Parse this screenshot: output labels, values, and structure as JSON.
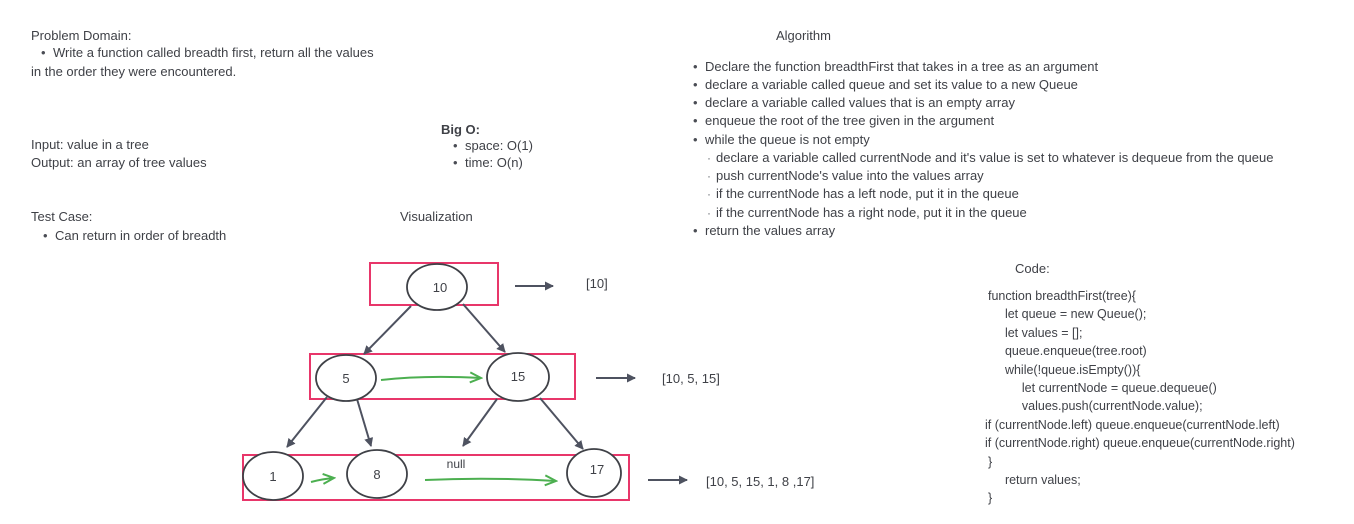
{
  "problem": {
    "heading": "Problem Domain:",
    "bullet": "Write a function called breadth first, return all the values",
    "continuation": "in the order they were encountered."
  },
  "io": {
    "input": "Input: value in a tree",
    "output": "Output: an array of tree values"
  },
  "big_o": {
    "heading": "Big O:",
    "items": [
      "space: O(1)",
      "time: O(n)"
    ]
  },
  "test_case": {
    "heading": "Test Case:",
    "item": "Can return in order of breadth"
  },
  "visualization": {
    "heading": "Visualization",
    "nodes": [
      "10",
      "5",
      "15",
      "1",
      "8",
      "17"
    ],
    "null_label": "null",
    "results": [
      "[10]",
      "[10, 5, 15]",
      "[10, 5, 15, 1, 8 ,17]"
    ]
  },
  "algorithm": {
    "heading": "Algorithm",
    "steps": [
      "Declare the function breadthFirst that takes in a tree as an argument",
      "declare a variable called queue and set its value to a new Queue",
      "declare a variable called values that is an empty array",
      "enqueue the root of the tree given in the argument",
      "while the queue is not empty"
    ],
    "substeps": [
      "declare a variable called currentNode and it's value is set to whatever is dequeue from the queue",
      "push currentNode's value into the values array",
      "if the currentNode has a left node, put it in the queue",
      "if the currentNode has a right node, put it in the queue"
    ],
    "final_step": "return the values array"
  },
  "code": {
    "heading": "Code:",
    "lines": [
      "function breadthFirst(tree){",
      "  let queue = new Queue();",
      "  let values = [];",
      "  queue.enqueue(tree.root)",
      "  while(!queue.isEmpty()){",
      "    let currentNode = queue.dequeue()",
      "    values.push(currentNode.value);",
      "if (currentNode.left) queue.enqueue(currentNode.left)",
      "if (currentNode.right) queue.enqueue(currentNode.right)",
      "}",
      "  return values;",
      "}"
    ]
  },
  "colors": {
    "text": "#3f4147",
    "highlight_box": "#e8366a",
    "edge": "#4e5260",
    "traversal_arrow": "#4caf50"
  }
}
